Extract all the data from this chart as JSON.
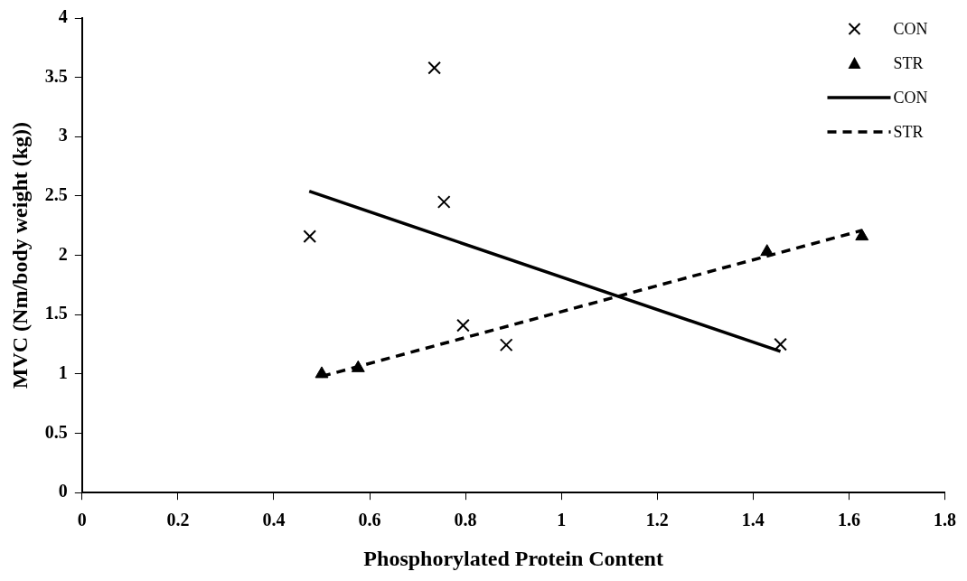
{
  "chart_data": {
    "type": "scatter",
    "xlabel": "Phosphorylated Protein Content",
    "ylabel": "MVC (Nm/body weight (kg))",
    "xlim": [
      0,
      1.8
    ],
    "xticks": [
      0,
      0.2,
      0.4,
      0.6,
      0.8,
      1,
      1.2,
      1.4,
      1.6,
      1.8
    ],
    "ylim": [
      0,
      4
    ],
    "yticks": [
      0,
      0.5,
      1,
      1.5,
      2,
      2.5,
      3,
      3.5,
      4
    ],
    "grid": false,
    "legend": "top right",
    "series": [
      {
        "name": "CON",
        "type": "scatter",
        "marker": "cross",
        "color": "#000000",
        "x": [
          0.475,
          0.735,
          0.755,
          0.795,
          0.885,
          1.457
        ],
        "values": [
          2.16,
          3.58,
          2.45,
          1.41,
          1.245,
          1.25
        ]
      },
      {
        "name": "STR",
        "type": "scatter",
        "marker": "triangle",
        "color": "#000000",
        "x": [
          0.5,
          0.576,
          1.429,
          1.627
        ],
        "values": [
          1.0,
          1.05,
          2.03,
          2.16
        ]
      },
      {
        "name": "CON",
        "type": "line",
        "marker": "none",
        "line_style": "solid",
        "color": "#000000",
        "x": [
          0.474,
          1.457
        ],
        "values": [
          2.54,
          1.19
        ]
      },
      {
        "name": "STR",
        "type": "line",
        "marker": "none",
        "line_style": "dashed",
        "color": "#000000",
        "x": [
          0.5,
          1.627
        ],
        "values": [
          0.98,
          2.21
        ]
      }
    ]
  }
}
